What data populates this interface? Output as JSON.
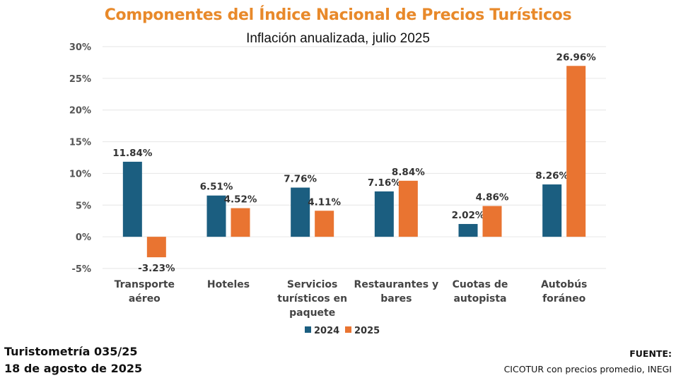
{
  "chart_data": {
    "type": "bar",
    "title": "Componentes del Índice Nacional de Precios Turísticos",
    "subtitle": "Inflación anualizada, julio 2025",
    "categories": [
      [
        "Transporte",
        "aéreo"
      ],
      [
        "Hoteles"
      ],
      [
        "Servicios",
        "turísticos en",
        "paquete"
      ],
      [
        "Restaurantes y",
        "bares"
      ],
      [
        "Cuotas de",
        "autopista"
      ],
      [
        "Autobús",
        "foráneo"
      ]
    ],
    "series": [
      {
        "name": "2024",
        "color": "#1B5E80",
        "values": [
          11.84,
          6.51,
          7.76,
          7.16,
          2.02,
          8.26
        ],
        "labels": [
          "11.84%",
          "6.51%",
          "7.76%",
          "7.16%",
          "2.02%",
          "8.26%"
        ]
      },
      {
        "name": "2025",
        "color": "#E97431",
        "values": [
          -3.23,
          4.52,
          4.11,
          8.84,
          4.86,
          26.96
        ],
        "labels": [
          "-3.23%",
          "4.52%",
          "4.11%",
          "8.84%",
          "4.86%",
          "26.96%"
        ]
      }
    ],
    "ylim": [
      -5,
      30
    ],
    "yticks": [
      "-5%",
      "0%",
      "5%",
      "10%",
      "15%",
      "20%",
      "25%",
      "30%"
    ],
    "ytick_values": [
      -5,
      0,
      5,
      10,
      15,
      20,
      25,
      30
    ],
    "grid": true,
    "legend": "bottom"
  },
  "footer": {
    "report": "Turistometría 035/25",
    "date": "18 de agosto de 2025",
    "source_label": "FUENTE:",
    "source": "CICOTUR con precios promedio, INEGI"
  }
}
